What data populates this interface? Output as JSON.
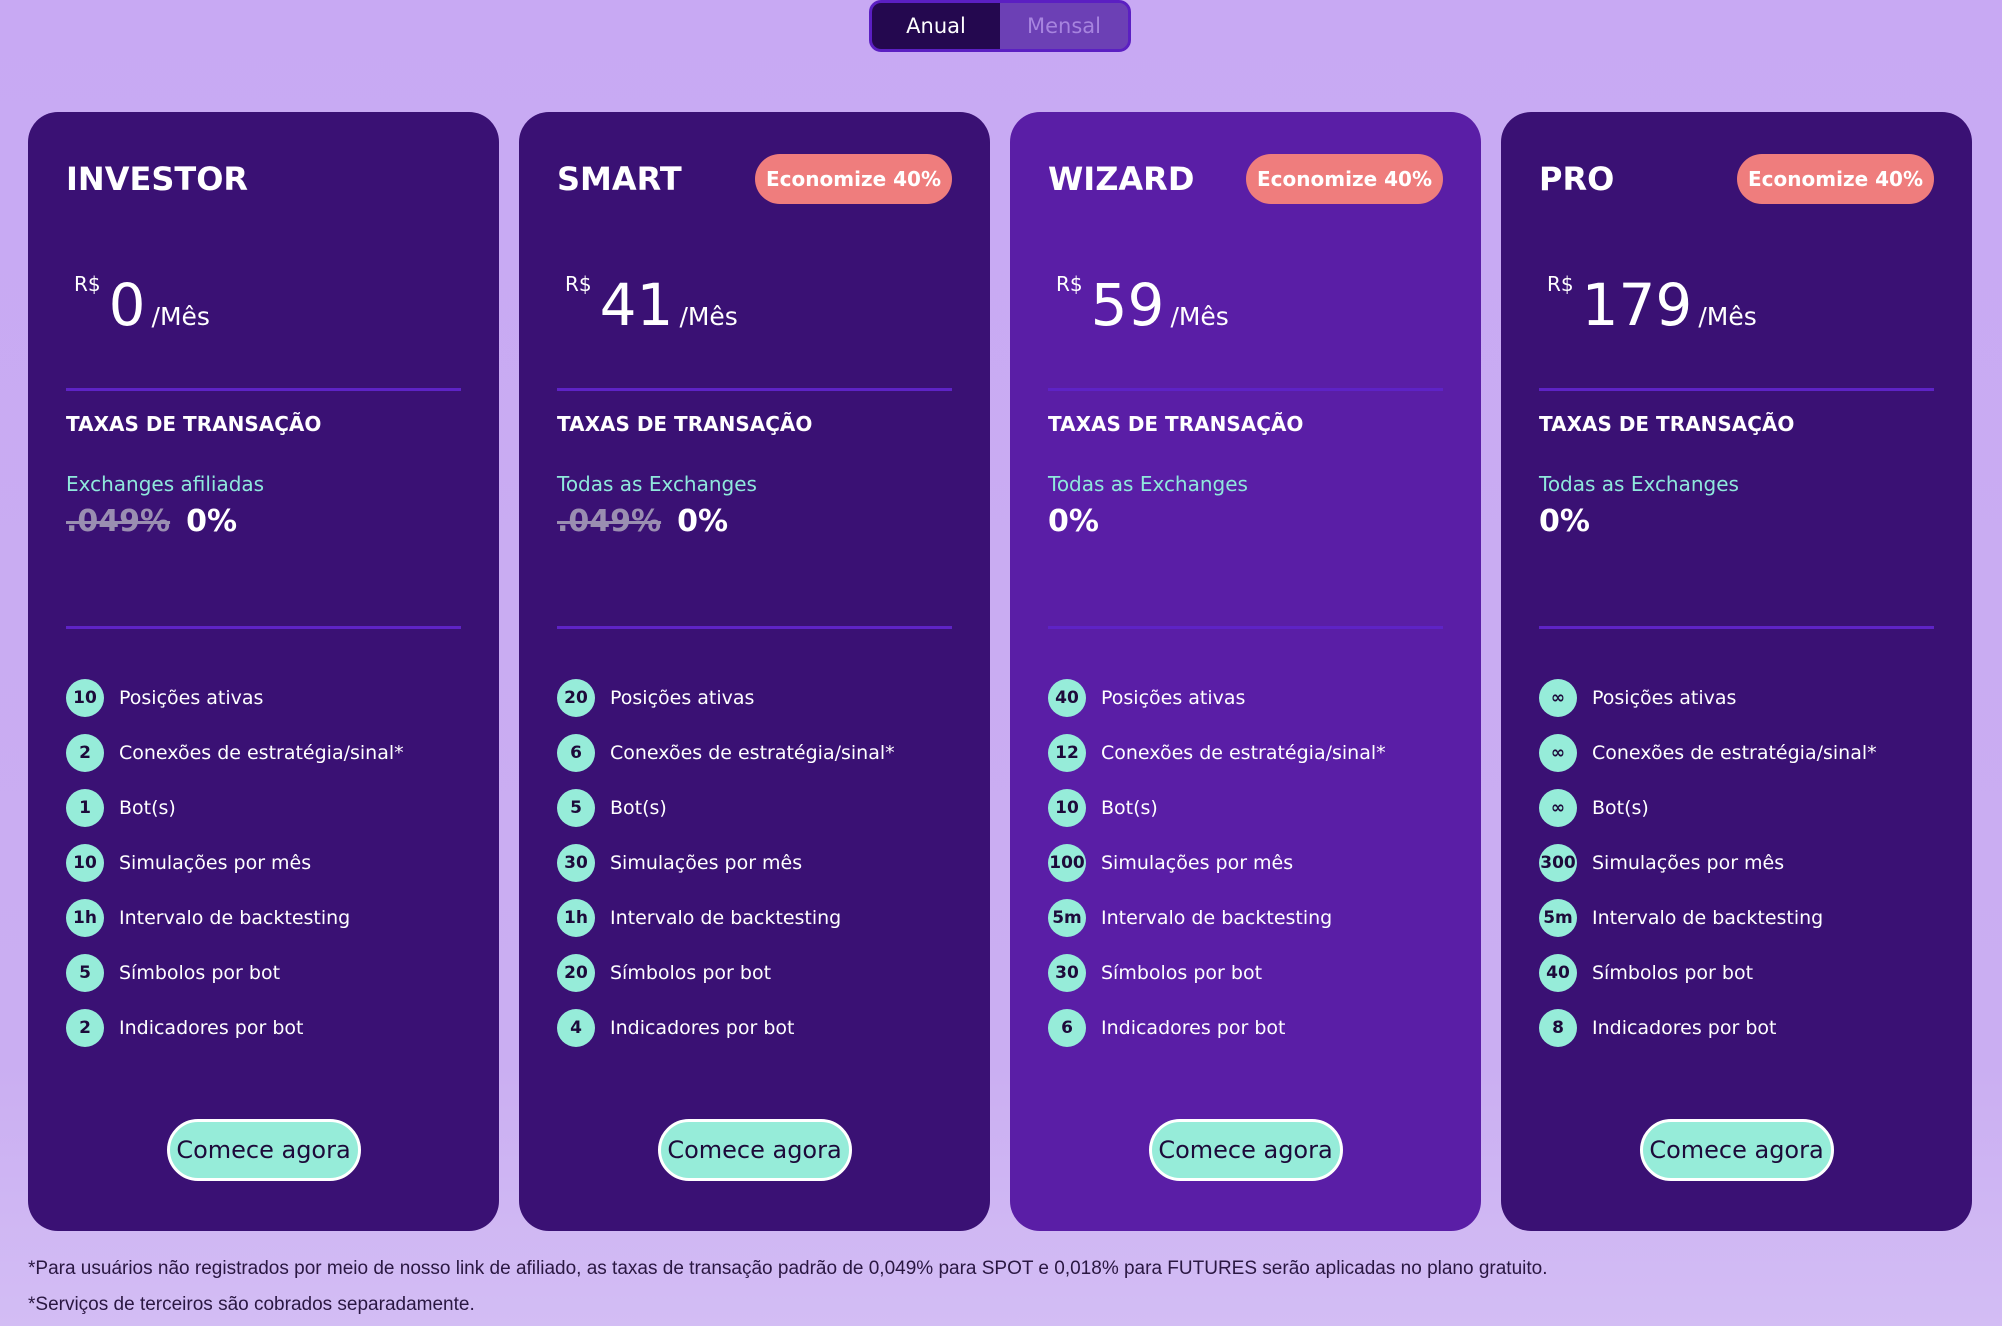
{
  "toggle": {
    "annual": "Anual",
    "monthly": "Mensal"
  },
  "common": {
    "currency": "R$",
    "per": "/Mês",
    "fees_title": "TAXAS DE TRANSAÇÃO",
    "cta": "Comece agora",
    "feature_labels": [
      "Posições ativas",
      "Conexões de estratégia/sinal*",
      "Bot(s)",
      "Simulações por mês",
      "Intervalo de backtesting",
      "Símbolos por bot",
      "Indicadores por bot"
    ]
  },
  "plans": [
    {
      "name": "INVESTOR",
      "badge": "",
      "amount": "0",
      "fees_label": "Exchanges afiliadas",
      "old_fee": ".049%",
      "fee": "0%",
      "values": [
        "10",
        "2",
        "1",
        "10",
        "1h",
        "5",
        "2"
      ]
    },
    {
      "name": "SMART",
      "badge": "Economize 40%",
      "amount": "41",
      "fees_label": "Todas as Exchanges",
      "old_fee": ".049%",
      "fee": "0%",
      "values": [
        "20",
        "6",
        "5",
        "30",
        "1h",
        "20",
        "4"
      ]
    },
    {
      "name": "WIZARD",
      "badge": "Economize 40%",
      "amount": "59",
      "fees_label": "Todas as Exchanges",
      "old_fee": "",
      "fee": "0%",
      "values": [
        "40",
        "12",
        "10",
        "100",
        "5m",
        "30",
        "6"
      ]
    },
    {
      "name": "PRO",
      "badge": "Economize 40%",
      "amount": "179",
      "fees_label": "Todas as Exchanges",
      "old_fee": "",
      "fee": "0%",
      "values": [
        "∞",
        "∞",
        "∞",
        "300",
        "5m",
        "40",
        "8"
      ]
    }
  ],
  "footnotes": [
    "*Para usuários não registrados por meio de nosso link de afiliado, as taxas de transação padrão de 0,049% para SPOT e 0,018% para FUTURES serão aplicadas no plano gratuito.",
    "*Serviços de terceiros são cobrados separadamente."
  ],
  "colors": {
    "card": "#3a1174",
    "card_highlight": "#5a1ea6",
    "accent": "#96ecd9",
    "badge": "#ef7d7d"
  }
}
